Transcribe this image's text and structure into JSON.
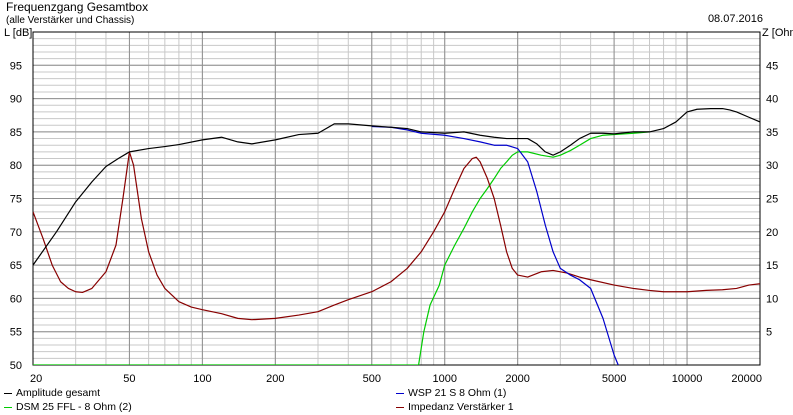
{
  "header": {
    "title": "Frequenzgang Gesamtbox",
    "subtitle": "(alle Verstärker und Chassis)",
    "date": "08.07.2016"
  },
  "chart_data": {
    "type": "line",
    "xscale": "log",
    "xlim": [
      20,
      20000
    ],
    "ylim_left": [
      50,
      100
    ],
    "ylim_right": [
      0,
      50
    ],
    "ylabel_left": "L [dB]",
    "ylabel_right": "Z [Ohm]",
    "x_ticks": [
      20,
      50,
      100,
      200,
      500,
      1000,
      2000,
      5000,
      10000,
      20000
    ],
    "x_tick_labels": [
      "20",
      "50",
      "100",
      "200",
      "500",
      "1000",
      "2000",
      "5000",
      "10000",
      "20000"
    ],
    "y_ticks_left": [
      50,
      55,
      60,
      65,
      70,
      75,
      80,
      85,
      90,
      95
    ],
    "y_tick_labels_left": [
      "50",
      "55",
      "60",
      "65",
      "70",
      "75",
      "80",
      "85",
      "90",
      "95"
    ],
    "y_ticks_right": [
      5,
      10,
      15,
      20,
      25,
      30,
      35,
      40,
      45
    ],
    "y_tick_labels_right": [
      "5",
      "10",
      "15",
      "20",
      "25",
      "30",
      "35",
      "40",
      "45"
    ],
    "grid": true,
    "legend_position": "bottom",
    "series": [
      {
        "name": "Amplitude gesamt",
        "color": "#000000",
        "axis": "left",
        "points": [
          [
            20,
            65
          ],
          [
            25,
            70
          ],
          [
            30,
            74.5
          ],
          [
            35,
            77.5
          ],
          [
            40,
            79.8
          ],
          [
            45,
            81
          ],
          [
            50,
            82
          ],
          [
            60,
            82.5
          ],
          [
            70,
            82.8
          ],
          [
            80,
            83.1
          ],
          [
            100,
            83.8
          ],
          [
            120,
            84.2
          ],
          [
            140,
            83.5
          ],
          [
            160,
            83.2
          ],
          [
            200,
            83.8
          ],
          [
            250,
            84.6
          ],
          [
            300,
            84.8
          ],
          [
            350,
            86.2
          ],
          [
            400,
            86.2
          ],
          [
            500,
            85.9
          ],
          [
            600,
            85.7
          ],
          [
            700,
            85.5
          ],
          [
            800,
            85
          ],
          [
            1000,
            84.8
          ],
          [
            1200,
            85
          ],
          [
            1400,
            84.5
          ],
          [
            1600,
            84.2
          ],
          [
            1800,
            84
          ],
          [
            2000,
            84
          ],
          [
            2200,
            84
          ],
          [
            2400,
            83.2
          ],
          [
            2600,
            82
          ],
          [
            2800,
            81.5
          ],
          [
            3000,
            82
          ],
          [
            3300,
            83
          ],
          [
            3600,
            84
          ],
          [
            4000,
            84.8
          ],
          [
            4500,
            84.8
          ],
          [
            5000,
            84.7
          ],
          [
            6000,
            85
          ],
          [
            7000,
            85
          ],
          [
            8000,
            85.5
          ],
          [
            9000,
            86.5
          ],
          [
            10000,
            88
          ],
          [
            11000,
            88.4
          ],
          [
            12500,
            88.5
          ],
          [
            14000,
            88.5
          ],
          [
            15000,
            88.3
          ],
          [
            16000,
            88
          ],
          [
            18000,
            87.2
          ],
          [
            20000,
            86.5
          ]
        ]
      },
      {
        "name": "DSM 25 FFL - 8 Ohm (2)",
        "color": "#00cc00",
        "axis": "left",
        "points": [
          [
            20,
            50
          ],
          [
            780,
            50
          ],
          [
            820,
            55
          ],
          [
            870,
            59
          ],
          [
            950,
            62
          ],
          [
            1000,
            65
          ],
          [
            1100,
            68
          ],
          [
            1200,
            70.5
          ],
          [
            1300,
            73
          ],
          [
            1400,
            75
          ],
          [
            1500,
            76.5
          ],
          [
            1600,
            78
          ],
          [
            1700,
            79.5
          ],
          [
            1800,
            80.5
          ],
          [
            1900,
            81.5
          ],
          [
            2000,
            82
          ],
          [
            2200,
            82
          ],
          [
            2500,
            81.5
          ],
          [
            2800,
            81.2
          ],
          [
            3000,
            81.5
          ],
          [
            3300,
            82.2
          ],
          [
            3600,
            83
          ],
          [
            4000,
            84
          ],
          [
            4500,
            84.5
          ],
          [
            5000,
            84.6
          ],
          [
            6000,
            84.8
          ],
          [
            7000,
            85
          ]
        ]
      },
      {
        "name": "WSP 21 S 8 Ohm (1)",
        "color": "#0000cc",
        "axis": "left",
        "points": [
          [
            500,
            85.8
          ],
          [
            600,
            85.7
          ],
          [
            700,
            85.3
          ],
          [
            800,
            84.8
          ],
          [
            1000,
            84.5
          ],
          [
            1200,
            84
          ],
          [
            1400,
            83.5
          ],
          [
            1600,
            83
          ],
          [
            1800,
            83
          ],
          [
            2000,
            82.5
          ],
          [
            2200,
            80.5
          ],
          [
            2400,
            76
          ],
          [
            2600,
            71
          ],
          [
            2800,
            67
          ],
          [
            3000,
            64.5
          ],
          [
            3300,
            63.5
          ],
          [
            3600,
            62.8
          ],
          [
            4000,
            61.5
          ],
          [
            4500,
            57
          ],
          [
            5000,
            51.5
          ],
          [
            5200,
            50
          ]
        ]
      },
      {
        "name": "Impedanz Verstärker 1",
        "color": "#880000",
        "axis": "right",
        "points": [
          [
            20,
            23
          ],
          [
            22,
            19
          ],
          [
            24,
            15
          ],
          [
            26,
            12.5
          ],
          [
            28,
            11.5
          ],
          [
            30,
            11
          ],
          [
            32,
            10.9
          ],
          [
            35,
            11.5
          ],
          [
            40,
            14
          ],
          [
            44,
            18
          ],
          [
            47,
            25
          ],
          [
            50,
            32
          ],
          [
            52,
            30
          ],
          [
            56,
            22
          ],
          [
            60,
            17
          ],
          [
            65,
            13.5
          ],
          [
            70,
            11.5
          ],
          [
            80,
            9.5
          ],
          [
            90,
            8.7
          ],
          [
            100,
            8.3
          ],
          [
            120,
            7.7
          ],
          [
            140,
            7
          ],
          [
            160,
            6.8
          ],
          [
            200,
            7
          ],
          [
            250,
            7.5
          ],
          [
            300,
            8
          ],
          [
            350,
            9
          ],
          [
            400,
            9.8
          ],
          [
            500,
            11
          ],
          [
            600,
            12.5
          ],
          [
            700,
            14.5
          ],
          [
            800,
            17
          ],
          [
            900,
            20
          ],
          [
            1000,
            23
          ],
          [
            1100,
            26.5
          ],
          [
            1200,
            29.5
          ],
          [
            1300,
            31
          ],
          [
            1350,
            31.2
          ],
          [
            1400,
            30.5
          ],
          [
            1500,
            28
          ],
          [
            1600,
            25
          ],
          [
            1700,
            21
          ],
          [
            1800,
            17
          ],
          [
            1900,
            14.5
          ],
          [
            2000,
            13.5
          ],
          [
            2200,
            13.2
          ],
          [
            2500,
            14
          ],
          [
            2800,
            14.2
          ],
          [
            3200,
            13.8
          ],
          [
            3600,
            13.2
          ],
          [
            4000,
            12.8
          ],
          [
            5000,
            12
          ],
          [
            6000,
            11.5
          ],
          [
            7000,
            11.2
          ],
          [
            8000,
            11
          ],
          [
            10000,
            11
          ],
          [
            12000,
            11.2
          ],
          [
            14000,
            11.3
          ],
          [
            16000,
            11.5
          ],
          [
            18000,
            12
          ],
          [
            20000,
            12.2
          ]
        ]
      }
    ]
  }
}
